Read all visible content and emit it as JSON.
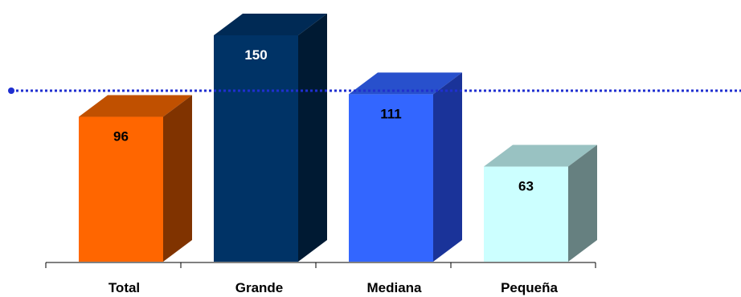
{
  "chart_data": {
    "type": "bar",
    "categories": [
      "Total",
      "Grande",
      "Mediana",
      "Pequeña"
    ],
    "values": [
      96,
      150,
      111,
      63
    ],
    "value_labels": [
      "96",
      "150",
      "111",
      "63"
    ],
    "ylim": [
      0,
      150
    ],
    "reference_line": {
      "value": 115,
      "style": "dotted",
      "color": "#1f2fd0"
    },
    "bar_colors": [
      {
        "front": "#ff6600",
        "top": "#c05000",
        "side": "#803300"
      },
      {
        "front": "#003366",
        "top": "#002a55",
        "side": "#001a33"
      },
      {
        "front": "#3366ff",
        "top": "#2850cc",
        "side": "#1a3399"
      },
      {
        "front": "#ccffff",
        "top": "#99c2c2",
        "side": "#668080"
      }
    ],
    "value_label_colors": [
      "#000000",
      "#ffffff",
      "#000000",
      "#000000"
    ],
    "grid": false,
    "legend": "none",
    "style": "3d"
  }
}
